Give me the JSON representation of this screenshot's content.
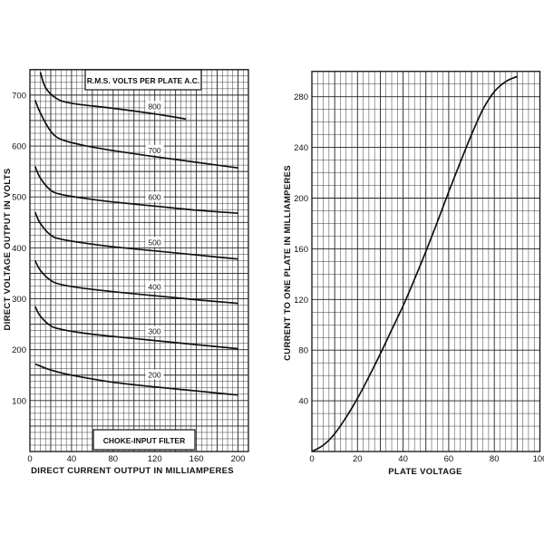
{
  "chart_data": [
    {
      "type": "line",
      "xlabel": "DIRECT CURRENT OUTPUT IN MILLIAMPERES",
      "ylabel": "DIRECT VOLTAGE OUTPUT IN VOLTS",
      "xlim": [
        0,
        210
      ],
      "ylim": [
        0,
        750
      ],
      "x_ticks": [
        "0",
        "40",
        "80",
        "120",
        "160",
        "200"
      ],
      "y_ticks": [
        "100",
        "200",
        "300",
        "400",
        "500",
        "600",
        "700"
      ],
      "grid": true,
      "top_box": "R.M.S. VOLTS PER PLATE A.C.",
      "bottom_box": "CHOKE-INPUT FILTER",
      "series": [
        {
          "name": "800",
          "points": [
            [
              10,
              745
            ],
            [
              15,
              715
            ],
            [
              25,
              694
            ],
            [
              40,
              684
            ],
            [
              80,
              674
            ],
            [
              120,
              663
            ],
            [
              150,
              653
            ]
          ],
          "label_at": [
            112,
            674
          ]
        },
        {
          "name": "700",
          "points": [
            [
              5,
              690
            ],
            [
              10,
              665
            ],
            [
              20,
              629
            ],
            [
              30,
              613
            ],
            [
              50,
              602
            ],
            [
              80,
              591
            ],
            [
              120,
              579
            ],
            [
              160,
              568
            ],
            [
              200,
              557
            ]
          ],
          "label_at": [
            112,
            588
          ]
        },
        {
          "name": "600",
          "points": [
            [
              5,
              560
            ],
            [
              10,
              537
            ],
            [
              20,
              513
            ],
            [
              30,
              505
            ],
            [
              50,
              498
            ],
            [
              80,
              490
            ],
            [
              120,
              482
            ],
            [
              160,
              474
            ],
            [
              200,
              468
            ]
          ],
          "label_at": [
            112,
            496
          ]
        },
        {
          "name": "500",
          "points": [
            [
              5,
              470
            ],
            [
              10,
              448
            ],
            [
              20,
              425
            ],
            [
              30,
              417
            ],
            [
              50,
              410
            ],
            [
              80,
              402
            ],
            [
              120,
              394
            ],
            [
              160,
              386
            ],
            [
              200,
              378
            ]
          ],
          "label_at": [
            112,
            407
          ]
        },
        {
          "name": "400",
          "points": [
            [
              5,
              375
            ],
            [
              10,
              356
            ],
            [
              20,
              336
            ],
            [
              30,
              328
            ],
            [
              50,
              321
            ],
            [
              80,
              314
            ],
            [
              120,
              306
            ],
            [
              160,
              298
            ],
            [
              200,
              291
            ]
          ],
          "label_at": [
            112,
            320
          ]
        },
        {
          "name": "300",
          "points": [
            [
              5,
              285
            ],
            [
              10,
              266
            ],
            [
              20,
              247
            ],
            [
              30,
              240
            ],
            [
              50,
              233
            ],
            [
              80,
              226
            ],
            [
              120,
              218
            ],
            [
              160,
              210
            ],
            [
              200,
              202
            ]
          ],
          "label_at": [
            112,
            232
          ]
        },
        {
          "name": "200",
          "points": [
            [
              5,
              172
            ],
            [
              20,
              160
            ],
            [
              40,
              150
            ],
            [
              80,
              136
            ],
            [
              120,
              127
            ],
            [
              160,
              119
            ],
            [
              200,
              111
            ]
          ],
          "label_at": [
            112,
            147
          ]
        }
      ]
    },
    {
      "type": "line",
      "xlabel": "PLATE VOLTAGE",
      "ylabel": "CURRENT TO ONE PLATE IN MILLIAMPERES",
      "xlim": [
        0,
        100
      ],
      "ylim": [
        0,
        300
      ],
      "x_ticks": [
        "0",
        "20",
        "40",
        "60",
        "80",
        "100"
      ],
      "y_ticks": [
        "40",
        "80",
        "120",
        "160",
        "200",
        "240",
        "280"
      ],
      "grid": true,
      "series": [
        {
          "points": [
            [
              0,
              0
            ],
            [
              5,
              5
            ],
            [
              10,
              14
            ],
            [
              15,
              27
            ],
            [
              20,
              42
            ],
            [
              25,
              59
            ],
            [
              30,
              77
            ],
            [
              35,
              96
            ],
            [
              40,
              115
            ],
            [
              45,
              136
            ],
            [
              50,
              158
            ],
            [
              55,
              181
            ],
            [
              60,
              205
            ],
            [
              65,
              228
            ],
            [
              70,
              250
            ],
            [
              75,
              270
            ],
            [
              80,
              284
            ],
            [
              85,
              292
            ],
            [
              90,
              296
            ]
          ]
        }
      ]
    }
  ]
}
